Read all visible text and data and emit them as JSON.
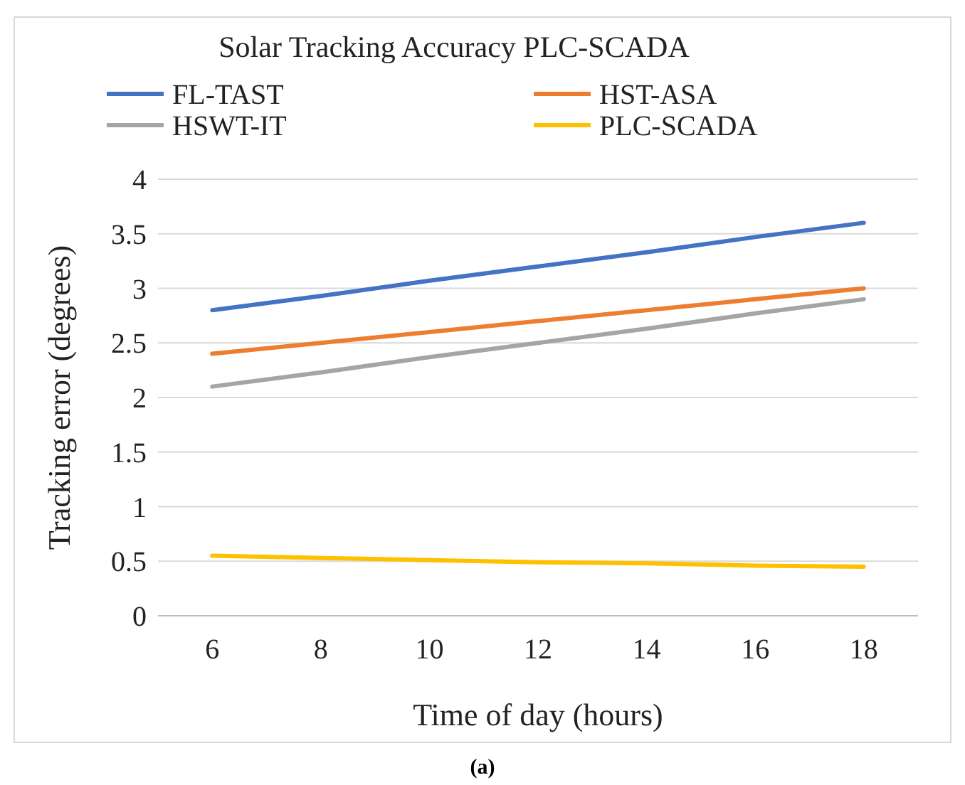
{
  "chart_data": {
    "type": "line",
    "title": "Solar Tracking Accuracy PLC-SCADA",
    "xlabel": "Time of day (hours)",
    "ylabel": "Tracking error (degrees)",
    "x": [
      6,
      8,
      10,
      12,
      14,
      16,
      18
    ],
    "series": [
      {
        "name": "FL-TAST",
        "color": "#4472c4",
        "values": [
          2.8,
          2.93,
          3.07,
          3.2,
          3.33,
          3.47,
          3.6
        ]
      },
      {
        "name": "HST-ASA",
        "color": "#ed7d31",
        "values": [
          2.4,
          2.5,
          2.6,
          2.7,
          2.8,
          2.9,
          3.0
        ]
      },
      {
        "name": "HSWT-IT",
        "color": "#a5a5a5",
        "values": [
          2.1,
          2.23,
          2.37,
          2.5,
          2.63,
          2.77,
          2.9
        ]
      },
      {
        "name": "PLC-SCADA",
        "color": "#ffc000",
        "values": [
          0.55,
          0.53,
          0.51,
          0.49,
          0.48,
          0.46,
          0.45
        ]
      }
    ],
    "xlim": [
      5,
      19
    ],
    "xticks": [
      6,
      8,
      10,
      12,
      14,
      16,
      18
    ],
    "ylim": [
      0,
      4
    ],
    "yticks": [
      0,
      0.5,
      1,
      1.5,
      2,
      2.5,
      3,
      3.5,
      4
    ],
    "grid": "y",
    "legend": "top",
    "marker": "none",
    "line_style": "solid",
    "annotations": [
      "(a)"
    ]
  }
}
